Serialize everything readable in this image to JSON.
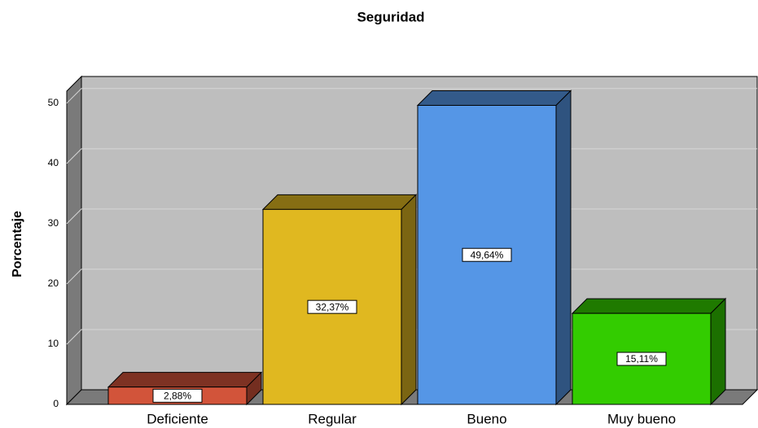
{
  "chart_data": {
    "type": "bar3d",
    "title": "Seguridad",
    "y_label": "Porcentaje",
    "categories": [
      "Deficiente",
      "Regular",
      "Bueno",
      "Muy bueno"
    ],
    "values": [
      2.88,
      32.37,
      49.64,
      15.11
    ],
    "value_labels": [
      "2,88%",
      "32,37%",
      "49,64%",
      "15,11%"
    ],
    "colors": [
      "#d2543a",
      "#e0b820",
      "#5596e6",
      "#33cc00"
    ],
    "ylim": [
      0,
      52
    ],
    "yticks": [
      0,
      10,
      20,
      30,
      40,
      50
    ],
    "grid": true
  }
}
